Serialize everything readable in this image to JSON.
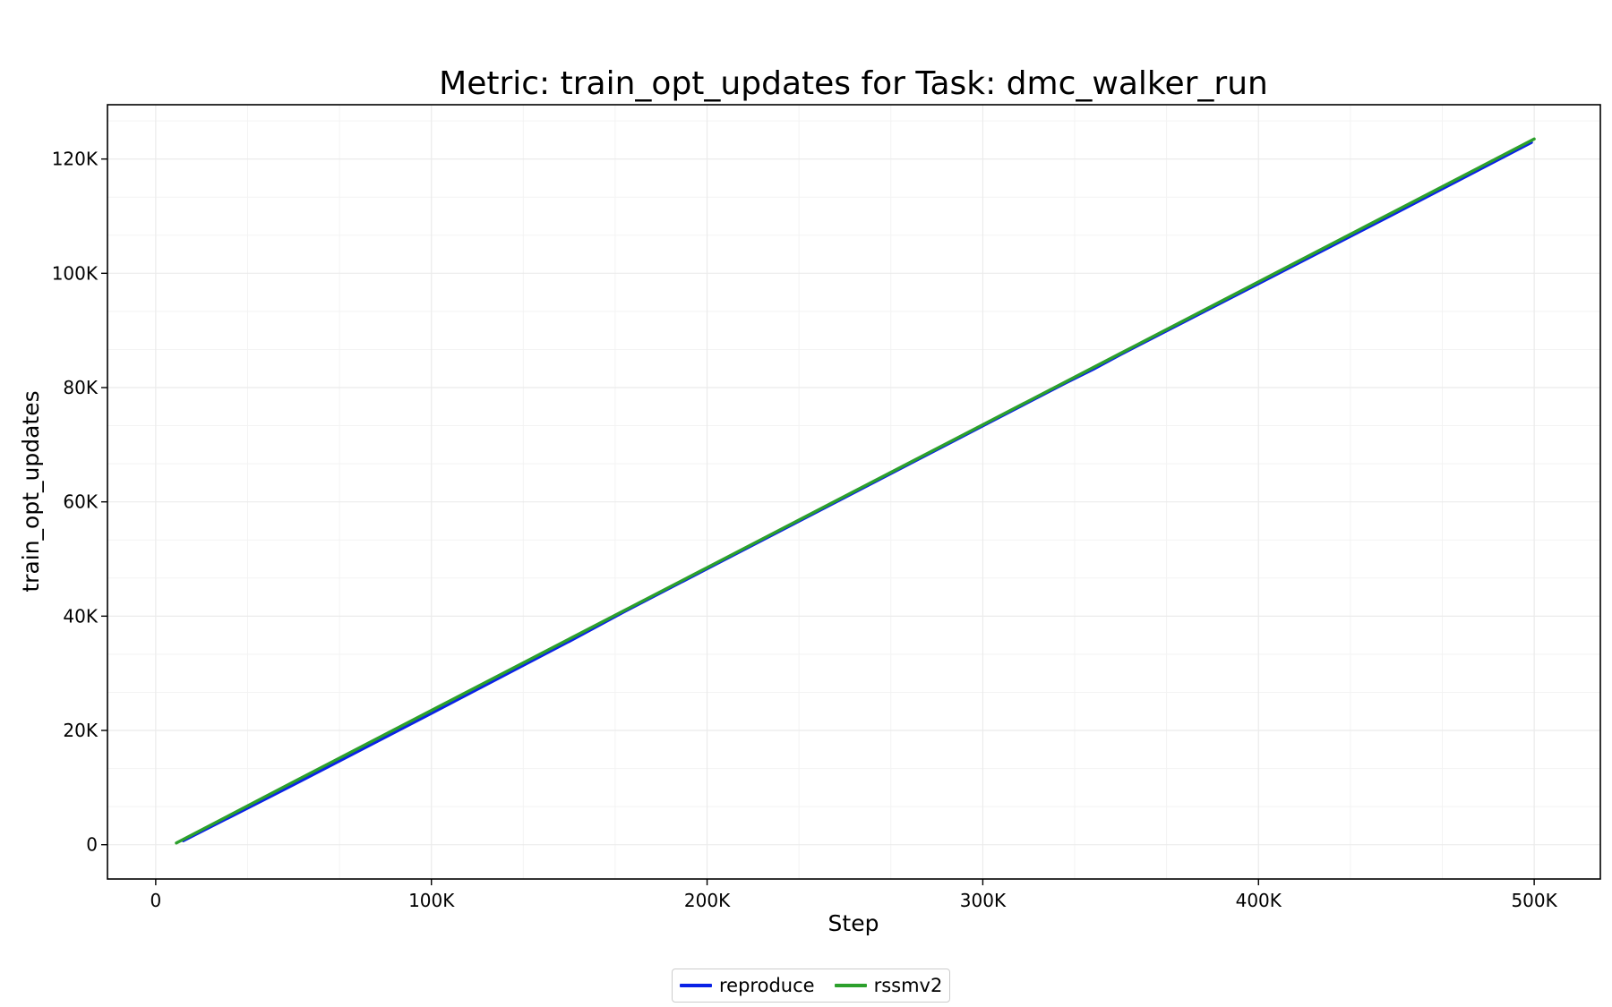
{
  "chart_data": {
    "type": "line",
    "title": "Metric: train_opt_updates for Task: dmc_walker_run",
    "xlabel": "Step",
    "ylabel": "train_opt_updates",
    "xlim": [
      -17500,
      524000
    ],
    "ylim": [
      -6000,
      129500
    ],
    "x_ticks": [
      0,
      100000,
      200000,
      300000,
      400000,
      500000
    ],
    "x_tick_labels": [
      "0",
      "100K",
      "200K",
      "300K",
      "400K",
      "500K"
    ],
    "y_ticks": [
      0,
      20000,
      40000,
      60000,
      80000,
      100000,
      120000
    ],
    "y_tick_labels": [
      "0",
      "20K",
      "40K",
      "60K",
      "80K",
      "100K",
      "120K"
    ],
    "grid": true,
    "legend_position": "bottom-center",
    "series": [
      {
        "name": "reproduce",
        "color": "#0a22e6",
        "x": [
          10000,
          50000,
          100000,
          150000,
          160000,
          170000,
          200000,
          250000,
          290000,
          300000,
          330000,
          340000,
          350000,
          400000,
          450000,
          499000
        ],
        "y": [
          700,
          10500,
          23000,
          35600,
          38200,
          40800,
          48300,
          60800,
          70800,
          73300,
          80800,
          83200,
          85800,
          98200,
          110600,
          122900
        ]
      },
      {
        "name": "rssmv2",
        "color": "#2ca02c",
        "x": [
          7500,
          50000,
          100000,
          150000,
          200000,
          250000,
          300000,
          350000,
          400000,
          450000,
          500000
        ],
        "y": [
          300,
          11000,
          23500,
          36000,
          48500,
          61000,
          73500,
          86000,
          98500,
          111000,
          123500
        ]
      }
    ]
  }
}
